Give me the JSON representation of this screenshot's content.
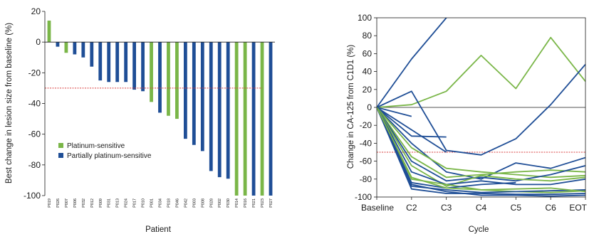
{
  "colors": {
    "sensitive": "#7ab648",
    "partial": "#1f4e96",
    "threshold": "#d94040"
  },
  "chart_data": [
    {
      "type": "bar",
      "xlabel": "Patient",
      "ylabel": "Best change in lesion size from baseline (%)",
      "ylim": [
        -100,
        20
      ],
      "yticks": [
        20,
        0,
        -20,
        -40,
        -60,
        -80,
        -100
      ],
      "threshold": -30,
      "legend_position": "lower-left",
      "legend": [
        {
          "key": "sensitive",
          "label": "Platinum-sensitive"
        },
        {
          "key": "partial",
          "label": "Partially platinum-sensitive"
        }
      ],
      "categories": [
        "P019",
        "P026",
        "P007",
        "P006",
        "P032",
        "P012",
        "P009",
        "P031",
        "P013",
        "P024",
        "P017",
        "P010",
        "P001",
        "P034",
        "P018",
        "P046",
        "P042",
        "P003",
        "P008",
        "P028",
        "P002",
        "P030",
        "P014",
        "P016",
        "P021",
        "P023",
        "P027"
      ],
      "values": [
        14,
        -3,
        -7,
        -8,
        -10,
        -16,
        -25,
        -26,
        -26,
        -26,
        -31,
        -32,
        -39,
        -46,
        -48,
        -50,
        -63,
        -67,
        -71,
        -84,
        -88,
        -89,
        -100,
        -100,
        -100,
        -100,
        -100
      ],
      "groups": [
        "sensitive",
        "partial",
        "sensitive",
        "partial",
        "partial",
        "partial",
        "partial",
        "partial",
        "partial",
        "partial",
        "partial",
        "partial",
        "sensitive",
        "partial",
        "sensitive",
        "sensitive",
        "partial",
        "partial",
        "partial",
        "partial",
        "partial",
        "partial",
        "sensitive",
        "sensitive",
        "partial",
        "sensitive",
        "partial"
      ]
    },
    {
      "type": "line",
      "xlabel": "Cycle",
      "ylabel": "Change in CA-125 from C1D1 (%)",
      "ylim": [
        -100,
        100
      ],
      "yticks": [
        100,
        80,
        60,
        40,
        20,
        0,
        -20,
        -40,
        -60,
        -80,
        -100
      ],
      "threshold": -50,
      "categories": [
        "Baseline",
        "C2",
        "C3",
        "C4",
        "C5",
        "C6",
        "EOT"
      ],
      "series": [
        {
          "group": "partial",
          "values": [
            0,
            54,
            100,
            null,
            null,
            null,
            null
          ]
        },
        {
          "group": "sensitive",
          "values": [
            0,
            3,
            18,
            58,
            21,
            78,
            29
          ]
        },
        {
          "group": "partial",
          "values": [
            0,
            18,
            -48,
            -53,
            -35,
            3,
            48
          ]
        },
        {
          "group": "partial",
          "values": [
            0,
            -10,
            null,
            null,
            null,
            null,
            null
          ]
        },
        {
          "group": "partial",
          "values": [
            0,
            -32,
            -33,
            null,
            null,
            null,
            null
          ]
        },
        {
          "group": "partial",
          "values": [
            0,
            -25,
            -50,
            null,
            null,
            null,
            null
          ]
        },
        {
          "group": "partial",
          "values": [
            0,
            -40,
            -72,
            -80,
            -62,
            -68,
            -56
          ]
        },
        {
          "group": "sensitive",
          "values": [
            0,
            -45,
            -68,
            -72,
            -75,
            -78,
            -76
          ]
        },
        {
          "group": "sensitive",
          "values": [
            0,
            -55,
            -78,
            -75,
            -72,
            -70,
            -72
          ]
        },
        {
          "group": "partial",
          "values": [
            0,
            -60,
            -82,
            -78,
            -82,
            -75,
            -65
          ]
        },
        {
          "group": "sensitive",
          "values": [
            0,
            -65,
            -88,
            -76,
            -80,
            -82,
            -78
          ]
        },
        {
          "group": "partial",
          "values": [
            0,
            -72,
            -86,
            -82,
            -86,
            -86,
            -80
          ]
        },
        {
          "group": "sensitive",
          "values": [
            0,
            -80,
            -86,
            -92,
            -94,
            -95,
            -93
          ]
        },
        {
          "group": "partial",
          "values": [
            0,
            -84,
            -90,
            -86,
            -84,
            null,
            null
          ]
        },
        {
          "group": "partial",
          "values": [
            0,
            -88,
            -92,
            -95,
            -94,
            -93,
            -92
          ]
        },
        {
          "group": "partial",
          "values": [
            0,
            -91,
            -96,
            -96,
            -97,
            -97,
            -96
          ]
        },
        {
          "group": "partial",
          "values": [
            0,
            -86,
            -94,
            -98,
            -98,
            -99,
            -98
          ]
        },
        {
          "group": "sensitive",
          "values": [
            0,
            -78,
            -90,
            -92,
            -91,
            -90,
            -94
          ]
        }
      ]
    }
  ]
}
